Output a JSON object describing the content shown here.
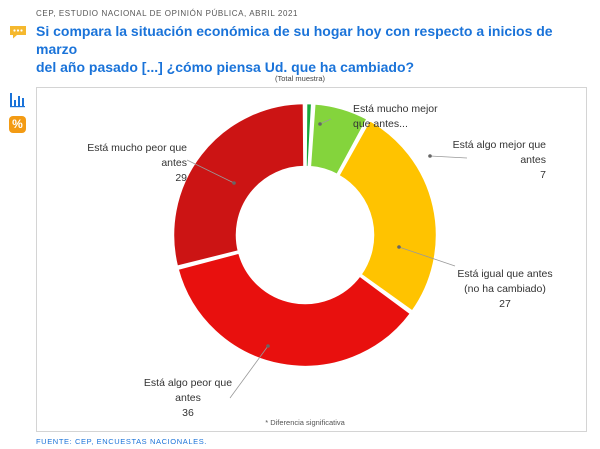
{
  "header": {
    "source": "CEP, ESTUDIO NACIONAL DE OPINIÓN PÚBLICA, ABRIL 2021",
    "title_line1": "Si compara la situación económica de su hogar hoy con respecto a inicios de marzo",
    "title_line2": "del año pasado [...] ¿cómo piensa Ud. que ha cambiado?"
  },
  "colors": {
    "mucho_mejor": "#1aa83a",
    "algo_mejor": "#84d43c",
    "igual": "#ffc300",
    "algo_peor": "#e8100e",
    "mucho_peor": "#cc1414",
    "accent": "#1a73d9",
    "icon_orange": "#f39b14"
  },
  "icons": {
    "title": "speech-bubble-icon",
    "chart": "bar-chart-icon",
    "percent": "percent-icon",
    "percent_glyph": "%"
  },
  "chart_data": {
    "type": "pie",
    "subtitle": "(Total muestra)",
    "donut": true,
    "slices": [
      {
        "label_lines": [
          "Está mucho mejor",
          "que antes..."
        ],
        "value": 1,
        "value_label": "",
        "color": "#1aa83a"
      },
      {
        "label_lines": [
          "Está algo mejor que",
          "antes"
        ],
        "value": 7,
        "value_label": "7",
        "color": "#84d43c"
      },
      {
        "label_lines": [
          "Está igual que antes",
          "(no ha cambiado)"
        ],
        "value": 27,
        "value_label": "27",
        "color": "#ffc300"
      },
      {
        "label_lines": [
          "Está algo peor que",
          "antes"
        ],
        "value": 36,
        "value_label": "36",
        "color": "#e8100e"
      },
      {
        "label_lines": [
          "Está mucho peor que",
          "antes"
        ],
        "value": 29,
        "value_label": "29",
        "color": "#cc1414"
      }
    ],
    "footnote": "* Diferencia significativa"
  },
  "footer": {
    "source": "FUENTE: CEP, ENCUESTAS NACIONALES."
  }
}
